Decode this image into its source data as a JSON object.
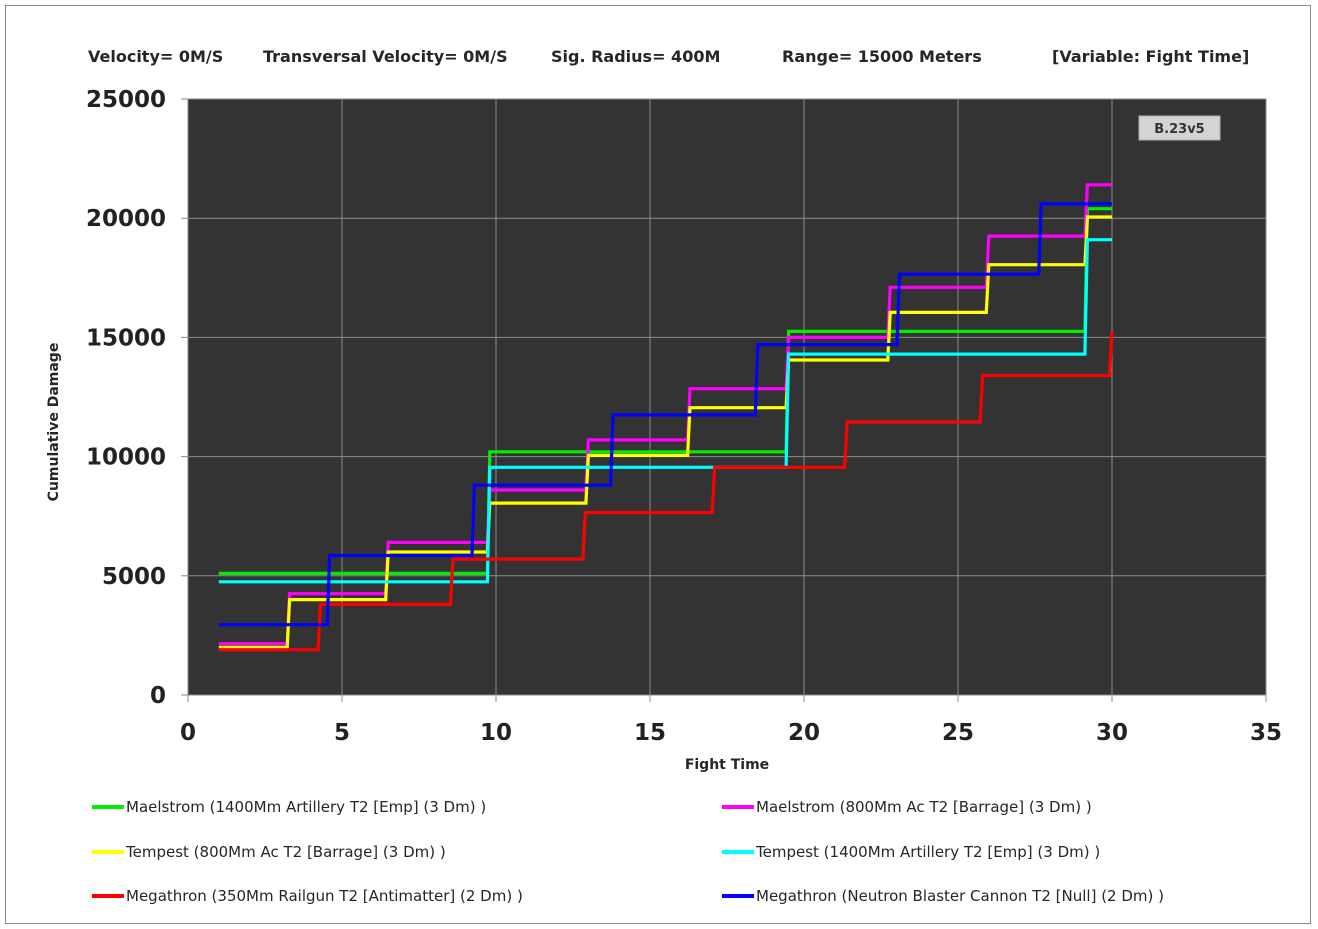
{
  "header": {
    "velocity": "Velocity= 0M/S",
    "transversal": "Transversal Velocity= 0M/S",
    "sig_radius": "Sig. Radius= 400M",
    "range": "Range= 15000 Meters",
    "variable": "[Variable: Fight Time]"
  },
  "badge": "B.23v5",
  "chart_data": {
    "type": "line",
    "title": "",
    "xlabel": "Fight Time",
    "ylabel": "Cumulative Damage",
    "xlim": [
      0,
      35
    ],
    "ylim": [
      0,
      25000
    ],
    "xticks": [
      0,
      5,
      10,
      15,
      20,
      25,
      30,
      35
    ],
    "yticks": [
      0,
      5000,
      10000,
      15000,
      20000,
      25000
    ],
    "xtick_labels": [
      "0",
      "5",
      "10",
      "15",
      "20",
      "25",
      "30",
      "35"
    ],
    "ytick_labels": [
      "0",
      "5000",
      "10000",
      "15000",
      "20000",
      "25000"
    ],
    "grid": true,
    "legend_position": "bottom",
    "series": [
      {
        "name": "Maelstrom (1400Mm Artillery T2 [Emp] (3 Dm) )",
        "color": "#00ee00",
        "steps": [
          [
            1,
            5100
          ],
          [
            9.8,
            10200
          ],
          [
            19.5,
            15250
          ],
          [
            29.2,
            20400
          ],
          [
            30,
            20400
          ]
        ]
      },
      {
        "name": "Maelstrom (800Mm Ac T2 [Barrage] (3 Dm) )",
        "color": "#ff00ff",
        "steps": [
          [
            1,
            2150
          ],
          [
            3.3,
            4250
          ],
          [
            6.5,
            6400
          ],
          [
            9.8,
            8600
          ],
          [
            13,
            10700
          ],
          [
            16.3,
            12850
          ],
          [
            19.5,
            15000
          ],
          [
            22.8,
            17100
          ],
          [
            26,
            19250
          ],
          [
            29.2,
            21400
          ],
          [
            30,
            21400
          ]
        ]
      },
      {
        "name": "Tempest (800Mm Ac T2 [Barrage] (3 Dm) )",
        "color": "#ffff00",
        "steps": [
          [
            1,
            2000
          ],
          [
            3.3,
            4000
          ],
          [
            6.5,
            6000
          ],
          [
            9.8,
            8050
          ],
          [
            13,
            10050
          ],
          [
            16.3,
            12050
          ],
          [
            19.5,
            14050
          ],
          [
            22.8,
            16050
          ],
          [
            26,
            18050
          ],
          [
            29.2,
            20050
          ],
          [
            30,
            20050
          ]
        ]
      },
      {
        "name": "Tempest (1400Mm Artillery T2 [Emp] (3 Dm) )",
        "color": "#00ffff",
        "steps": [
          [
            1,
            4750
          ],
          [
            9.8,
            9550
          ],
          [
            19.5,
            14300
          ],
          [
            29.2,
            19100
          ],
          [
            30,
            19100
          ]
        ]
      },
      {
        "name": "Megathron (350Mm Railgun T2 [Antimatter] (2 Dm) )",
        "color": "#ff0000",
        "steps": [
          [
            1,
            1900
          ],
          [
            4.3,
            3800
          ],
          [
            8.6,
            5700
          ],
          [
            12.9,
            7650
          ],
          [
            17.1,
            9550
          ],
          [
            21.4,
            11450
          ],
          [
            25.8,
            13400
          ],
          [
            30,
            15250
          ]
        ]
      },
      {
        "name": "Megathron (Neutron Blaster Cannon T2 [Null] (2 Dm) )",
        "color": "#0000ff",
        "steps": [
          [
            1,
            2950
          ],
          [
            4.6,
            5850
          ],
          [
            9.3,
            8800
          ],
          [
            13.8,
            11750
          ],
          [
            18.5,
            14700
          ],
          [
            23.1,
            17650
          ],
          [
            27.7,
            20600
          ],
          [
            30,
            20600
          ]
        ]
      }
    ]
  }
}
